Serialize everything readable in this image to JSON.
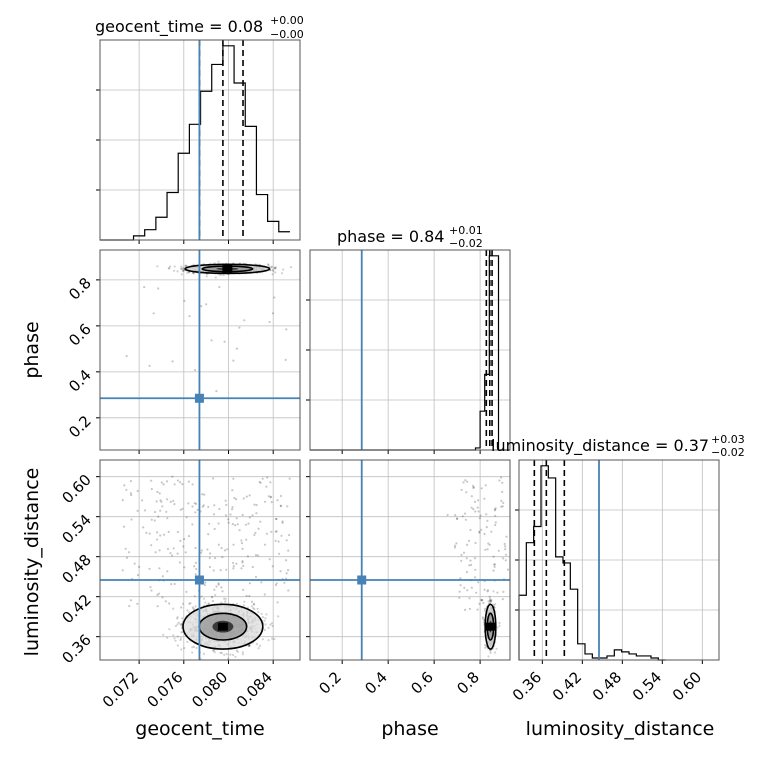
{
  "chart_data": {
    "type": "corner",
    "parameters": [
      "geocent_time",
      "phase",
      "luminosity_distance"
    ],
    "titles": [
      {
        "text": "geocent_time = 0.08",
        "upper": "+0.00",
        "lower": "−0.00"
      },
      {
        "text": "phase = 0.84",
        "upper": "+0.01",
        "lower": "−0.02"
      },
      {
        "text": "luminosity_distance = 0.37",
        "upper": "+0.03",
        "lower": "−0.02"
      }
    ],
    "ranges": {
      "geocent_time": [
        0.0685,
        0.0864
      ],
      "phase": [
        0.06,
        0.93
      ],
      "luminosity_distance": [
        0.325,
        0.625
      ]
    },
    "ticks": {
      "geocent_time": [
        0.072,
        0.076,
        0.08,
        0.084
      ],
      "geocent_time_labels": [
        "0.072",
        "0.076",
        "0.080",
        "0.084"
      ],
      "phase": [
        0.2,
        0.4,
        0.6,
        0.8
      ],
      "phase_labels": [
        "0.2",
        "0.4",
        "0.6",
        "0.8"
      ],
      "luminosity_distance": [
        0.36,
        0.42,
        0.48,
        0.54,
        0.6
      ],
      "luminosity_distance_labels": [
        "0.36",
        "0.42",
        "0.48",
        "0.54",
        "0.60"
      ]
    },
    "truths": {
      "geocent_time": 0.0774,
      "phase": 0.285,
      "luminosity_distance": 0.445
    },
    "quantiles": {
      "geocent_time": [
        0.0774,
        0.0795,
        0.0813
      ],
      "phase": [
        0.827,
        0.842,
        0.852
      ],
      "luminosity_distance": [
        0.348,
        0.366,
        0.393
      ]
    },
    "histograms": {
      "geocent_time": {
        "edges": [
          0.0685,
          0.0695,
          0.0705,
          0.0715,
          0.0725,
          0.0735,
          0.0745,
          0.0755,
          0.0765,
          0.0775,
          0.0785,
          0.0795,
          0.0805,
          0.0815,
          0.0825,
          0.0835,
          0.0845,
          0.0855
        ],
        "counts": [
          0,
          0,
          0,
          2,
          5,
          11,
          23,
          42,
          56,
          72,
          85,
          94,
          76,
          55,
          22,
          9,
          4
        ]
      },
      "phase": {
        "edges": [
          0.06,
          0.78,
          0.8,
          0.82,
          0.84,
          0.86,
          0.88,
          0.93
        ],
        "counts": [
          0,
          1,
          19,
          37,
          95,
          95,
          0
        ]
      },
      "luminosity_distance": {
        "edges": [
          0.325,
          0.336,
          0.347,
          0.358,
          0.369,
          0.38,
          0.391,
          0.402,
          0.413,
          0.424,
          0.435,
          0.446,
          0.457,
          0.468,
          0.479,
          0.49,
          0.501,
          0.512,
          0.523,
          0.534,
          0.545
        ],
        "counts": [
          32,
          58,
          66,
          96,
          90,
          51,
          48,
          35,
          8,
          3,
          1,
          1,
          2,
          5,
          4,
          3,
          2,
          2,
          1,
          0
        ]
      }
    },
    "density_centers": {
      "geocent_time_vs_phase": {
        "x": 0.0799,
        "y": 0.848
      },
      "geocent_time_vs_luminosity_distance": {
        "x": 0.0795,
        "y": 0.375
      },
      "phase_vs_luminosity_distance": {
        "x": 0.845,
        "y": 0.375
      }
    },
    "grid": true,
    "colors": {
      "truth": "#4682b4",
      "hist": "#000000",
      "points": "#000000"
    }
  }
}
